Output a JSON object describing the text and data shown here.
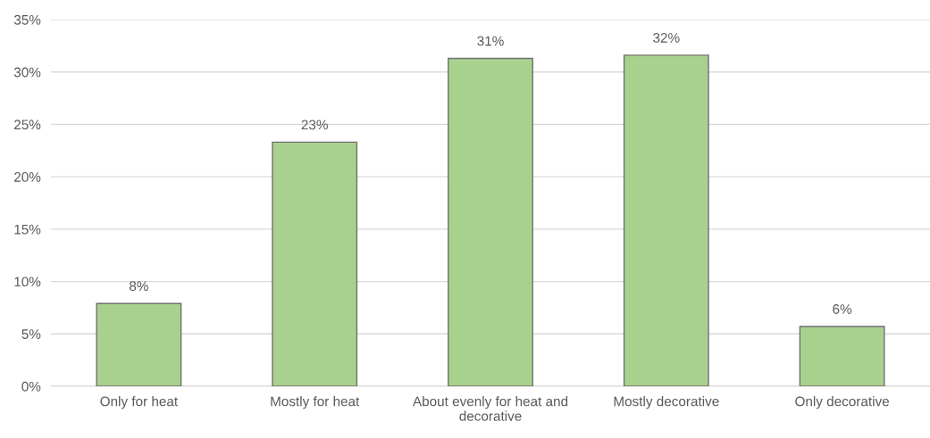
{
  "chart_data": {
    "type": "bar",
    "categories": [
      "Only for heat",
      "Mostly for heat",
      "About evenly for heat and decorative",
      "Mostly decorative",
      "Only decorative"
    ],
    "values": [
      7.9,
      23.3,
      31.3,
      31.6,
      5.7
    ],
    "value_labels": [
      "8%",
      "23%",
      "31%",
      "32%",
      "6%"
    ],
    "color": "#a9d18e",
    "ylim": [
      0,
      35
    ],
    "yticks": [
      {
        "value": 0,
        "label": "0%"
      },
      {
        "value": 5,
        "label": "5%"
      },
      {
        "value": 10,
        "label": "10%"
      },
      {
        "value": 15,
        "label": "15%"
      },
      {
        "value": 20,
        "label": "20%"
      },
      {
        "value": 25,
        "label": "25%"
      },
      {
        "value": 30,
        "label": "30%"
      },
      {
        "value": 35,
        "label": "35%"
      }
    ],
    "grid": "y"
  }
}
